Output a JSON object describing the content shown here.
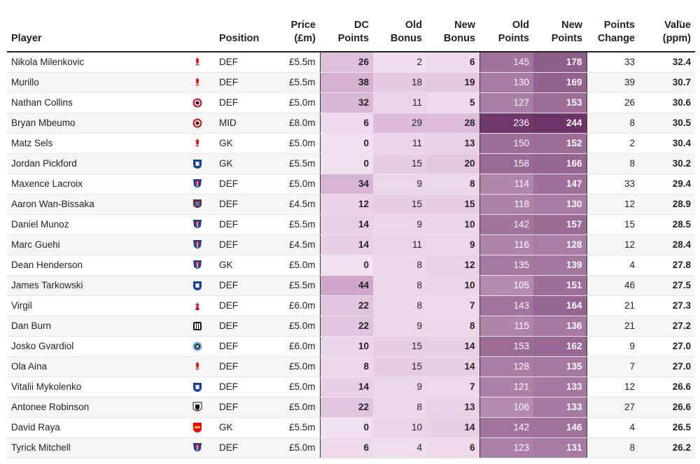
{
  "headers": {
    "player": "Player",
    "position": "Position",
    "price": [
      "Price",
      "(£m)"
    ],
    "dc_points": [
      "DC",
      "Points"
    ],
    "old_bonus": [
      "Old",
      "Bonus"
    ],
    "new_bonus": [
      "New",
      "Bonus"
    ],
    "old_points": [
      "Old",
      "Points"
    ],
    "new_points": [
      "New",
      "Points"
    ],
    "points_change": [
      "Points",
      "Change"
    ],
    "value": [
      "Value",
      "(ppm)"
    ]
  },
  "sort_indicator": "▼",
  "chart_data": {
    "type": "table",
    "columns": [
      "Player",
      "Position",
      "Price (£m)",
      "DC Points",
      "Old Bonus",
      "New Bonus",
      "Old Points",
      "New Points",
      "Points Change",
      "Value (ppm)"
    ],
    "rows": [
      {
        "player": "Nikola Milenkovic",
        "club_icon": "nottingham-forest-icon",
        "position": "DEF",
        "price": "£5.5m",
        "dc": 26,
        "old_bonus": 2,
        "new_bonus": 6,
        "old_points": 145,
        "new_points": 178,
        "change": 33,
        "value": "32.4"
      },
      {
        "player": "Murillo",
        "club_icon": "nottingham-forest-icon",
        "position": "DEF",
        "price": "£5.5m",
        "dc": 38,
        "old_bonus": 18,
        "new_bonus": 19,
        "old_points": 130,
        "new_points": 169,
        "change": 39,
        "value": "30.7"
      },
      {
        "player": "Nathan Collins",
        "club_icon": "brentford-icon",
        "position": "DEF",
        "price": "£5.0m",
        "dc": 32,
        "old_bonus": 11,
        "new_bonus": 5,
        "old_points": 127,
        "new_points": 153,
        "change": 26,
        "value": "30.6"
      },
      {
        "player": "Bryan Mbeumo",
        "club_icon": "brentford-icon",
        "position": "MID",
        "price": "£8.0m",
        "dc": 6,
        "old_bonus": 29,
        "new_bonus": 28,
        "old_points": 236,
        "new_points": 244,
        "change": 8,
        "value": "30.5"
      },
      {
        "player": "Matz Sels",
        "club_icon": "nottingham-forest-icon",
        "position": "GK",
        "price": "£5.0m",
        "dc": 0,
        "old_bonus": 11,
        "new_bonus": 13,
        "old_points": 150,
        "new_points": 152,
        "change": 2,
        "value": "30.4"
      },
      {
        "player": "Jordan Pickford",
        "club_icon": "everton-icon",
        "position": "GK",
        "price": "£5.5m",
        "dc": 0,
        "old_bonus": 15,
        "new_bonus": 20,
        "old_points": 158,
        "new_points": 166,
        "change": 8,
        "value": "30.2"
      },
      {
        "player": "Maxence Lacroix",
        "club_icon": "crystal-palace-icon",
        "position": "DEF",
        "price": "£5.0m",
        "dc": 34,
        "old_bonus": 9,
        "new_bonus": 8,
        "old_points": 114,
        "new_points": 147,
        "change": 33,
        "value": "29.4"
      },
      {
        "player": "Aaron Wan-Bissaka",
        "club_icon": "west-ham-icon",
        "position": "DEF",
        "price": "£4.5m",
        "dc": 12,
        "old_bonus": 15,
        "new_bonus": 15,
        "old_points": 118,
        "new_points": 130,
        "change": 12,
        "value": "28.9"
      },
      {
        "player": "Daniel Munoz",
        "club_icon": "crystal-palace-icon",
        "position": "DEF",
        "price": "£5.5m",
        "dc": 14,
        "old_bonus": 9,
        "new_bonus": 10,
        "old_points": 142,
        "new_points": 157,
        "change": 15,
        "value": "28.5"
      },
      {
        "player": "Marc Guehi",
        "club_icon": "crystal-palace-icon",
        "position": "DEF",
        "price": "£4.5m",
        "dc": 14,
        "old_bonus": 11,
        "new_bonus": 9,
        "old_points": 116,
        "new_points": 128,
        "change": 12,
        "value": "28.4"
      },
      {
        "player": "Dean Henderson",
        "club_icon": "crystal-palace-icon",
        "position": "GK",
        "price": "£5.0m",
        "dc": 0,
        "old_bonus": 8,
        "new_bonus": 12,
        "old_points": 135,
        "new_points": 139,
        "change": 4,
        "value": "27.8"
      },
      {
        "player": "James Tarkowski",
        "club_icon": "everton-icon",
        "position": "DEF",
        "price": "£5.5m",
        "dc": 44,
        "old_bonus": 8,
        "new_bonus": 10,
        "old_points": 105,
        "new_points": 151,
        "change": 46,
        "value": "27.5"
      },
      {
        "player": "Virgil",
        "club_icon": "liverpool-icon",
        "position": "DEF",
        "price": "£6.0m",
        "dc": 22,
        "old_bonus": 8,
        "new_bonus": 7,
        "old_points": 143,
        "new_points": 164,
        "change": 21,
        "value": "27.3"
      },
      {
        "player": "Dan Burn",
        "club_icon": "newcastle-icon",
        "position": "DEF",
        "price": "£5.0m",
        "dc": 22,
        "old_bonus": 9,
        "new_bonus": 8,
        "old_points": 115,
        "new_points": 136,
        "change": 21,
        "value": "27.2"
      },
      {
        "player": "Josko Gvardiol",
        "club_icon": "man-city-icon",
        "position": "DEF",
        "price": "£6.0m",
        "dc": 10,
        "old_bonus": 15,
        "new_bonus": 14,
        "old_points": 153,
        "new_points": 162,
        "change": 9,
        "value": "27.0"
      },
      {
        "player": "Ola Aina",
        "club_icon": "nottingham-forest-icon",
        "position": "DEF",
        "price": "£5.0m",
        "dc": 8,
        "old_bonus": 15,
        "new_bonus": 14,
        "old_points": 128,
        "new_points": 135,
        "change": 7,
        "value": "27.0"
      },
      {
        "player": "Vitalii Mykolenko",
        "club_icon": "everton-icon",
        "position": "DEF",
        "price": "£5.0m",
        "dc": 14,
        "old_bonus": 9,
        "new_bonus": 7,
        "old_points": 121,
        "new_points": 133,
        "change": 12,
        "value": "26.6"
      },
      {
        "player": "Antonee Robinson",
        "club_icon": "fulham-icon",
        "position": "DEF",
        "price": "£5.0m",
        "dc": 22,
        "old_bonus": 8,
        "new_bonus": 13,
        "old_points": 106,
        "new_points": 133,
        "change": 27,
        "value": "26.6"
      },
      {
        "player": "David Raya",
        "club_icon": "arsenal-icon",
        "position": "GK",
        "price": "£5.5m",
        "dc": 0,
        "old_bonus": 10,
        "new_bonus": 14,
        "old_points": 142,
        "new_points": 146,
        "change": 4,
        "value": "26.5"
      },
      {
        "player": "Tyrick Mitchell",
        "club_icon": "crystal-palace-icon",
        "position": "DEF",
        "price": "£5.0m",
        "dc": 6,
        "old_bonus": 4,
        "new_bonus": 6,
        "old_points": 123,
        "new_points": 131,
        "change": 8,
        "value": "26.2"
      }
    ]
  },
  "colors": {
    "bonus_low": "#f3e2f1",
    "bonus_high": "#cfa7cb",
    "points_low": "#b78eb4",
    "points_high": "#6b2f63",
    "header_rule": "#222222"
  }
}
